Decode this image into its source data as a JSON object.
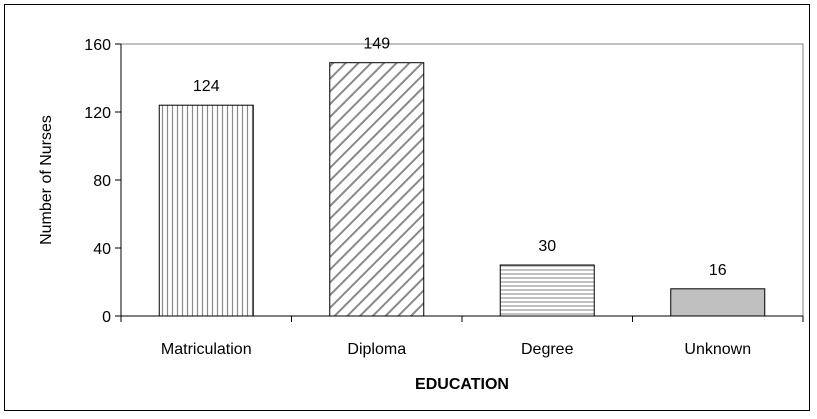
{
  "chart_data": {
    "type": "bar",
    "categories": [
      "Matriculation",
      "Diploma",
      "Degree",
      "Unknown"
    ],
    "values": [
      124,
      149,
      30,
      16
    ],
    "xlabel": "EDUCATION",
    "ylabel": "Number of Nurses",
    "ylim": [
      0,
      160
    ],
    "yticks": [
      "0",
      "40",
      "80",
      "120",
      "160"
    ],
    "data_labels": [
      "124",
      "149",
      "30",
      "16"
    ],
    "bar_patterns": [
      "vertical-lines",
      "diagonal-lines",
      "horizontal-lines",
      "solid-gray"
    ],
    "grid": false,
    "legend": "none"
  }
}
